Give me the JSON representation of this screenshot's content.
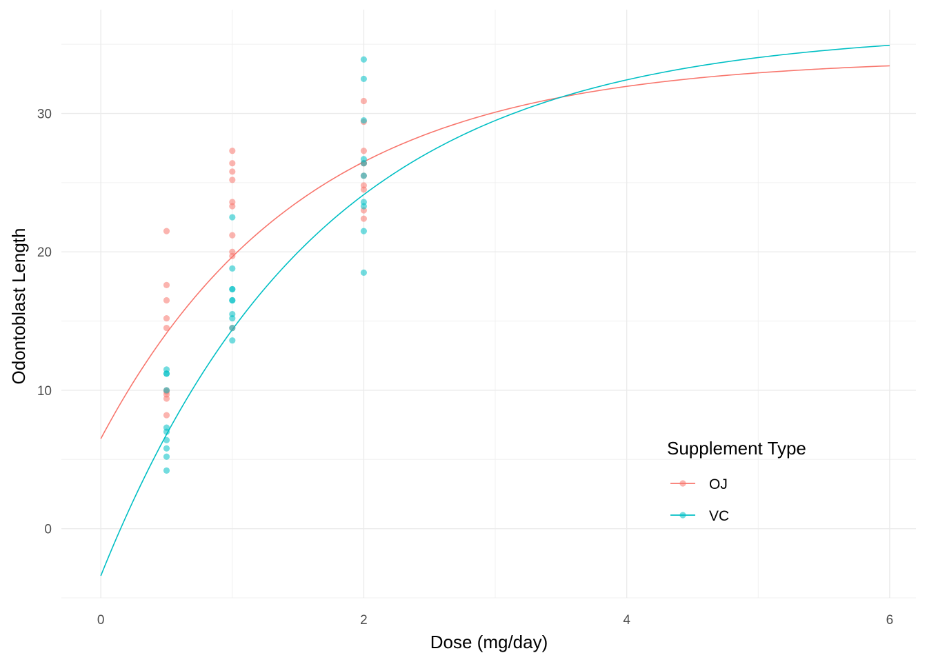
{
  "chart_data": {
    "type": "scatter",
    "title": "",
    "xlabel": "Dose (mg/day)",
    "ylabel": "Odontoblast Length",
    "xlim": [
      -0.3,
      6.2
    ],
    "ylim": [
      -5,
      37.5
    ],
    "x_ticks": [
      0,
      2,
      4,
      6
    ],
    "x_tick_labels": [
      "0",
      "2",
      "4",
      "6"
    ],
    "x_minor_ticks": [
      1,
      3,
      5
    ],
    "y_ticks": [
      0,
      10,
      20,
      30
    ],
    "y_tick_labels": [
      "0",
      "10",
      "20",
      "30"
    ],
    "y_minor_ticks": [
      -5,
      5,
      15,
      25,
      35
    ],
    "grid": true,
    "legend": {
      "title": "Supplement Type",
      "position": "bottom-right"
    },
    "series": [
      {
        "name": "OJ",
        "color": "#F8766D",
        "points": [
          [
            0.5,
            21.5
          ],
          [
            0.5,
            17.6
          ],
          [
            0.5,
            16.5
          ],
          [
            0.5,
            15.2
          ],
          [
            0.5,
            14.5
          ],
          [
            0.5,
            10.0
          ],
          [
            0.5,
            9.7
          ],
          [
            0.5,
            9.4
          ],
          [
            0.5,
            8.2
          ],
          [
            0.5,
            9.9
          ],
          [
            1,
            27.3
          ],
          [
            1,
            26.4
          ],
          [
            1,
            25.8
          ],
          [
            1,
            25.2
          ],
          [
            1,
            23.6
          ],
          [
            1,
            23.3
          ],
          [
            1,
            21.2
          ],
          [
            1,
            20.0
          ],
          [
            1,
            19.7
          ],
          [
            1,
            14.5
          ],
          [
            2,
            30.9
          ],
          [
            2,
            29.4
          ],
          [
            2,
            27.3
          ],
          [
            2,
            26.4
          ],
          [
            2,
            25.5
          ],
          [
            2,
            24.8
          ],
          [
            2,
            24.5
          ],
          [
            2,
            23.0
          ],
          [
            2,
            22.4
          ],
          [
            2,
            26.4
          ]
        ],
        "fit": {
          "model": "exponential",
          "asymptote": 34.0,
          "span": 27.5,
          "rate": 0.65
        }
      },
      {
        "name": "VC",
        "color": "#00BFC4",
        "points": [
          [
            0.5,
            11.5
          ],
          [
            0.5,
            11.2
          ],
          [
            0.5,
            10.0
          ],
          [
            0.5,
            7.3
          ],
          [
            0.5,
            7.0
          ],
          [
            0.5,
            6.4
          ],
          [
            0.5,
            5.8
          ],
          [
            0.5,
            5.2
          ],
          [
            0.5,
            4.2
          ],
          [
            0.5,
            11.2
          ],
          [
            1,
            22.5
          ],
          [
            1,
            18.8
          ],
          [
            1,
            17.3
          ],
          [
            1,
            16.5
          ],
          [
            1,
            15.5
          ],
          [
            1,
            15.2
          ],
          [
            1,
            14.5
          ],
          [
            1,
            13.6
          ],
          [
            1,
            17.3
          ],
          [
            1,
            16.5
          ],
          [
            2,
            33.9
          ],
          [
            2,
            32.5
          ],
          [
            2,
            29.5
          ],
          [
            2,
            26.7
          ],
          [
            2,
            26.4
          ],
          [
            2,
            25.5
          ],
          [
            2,
            23.6
          ],
          [
            2,
            23.3
          ],
          [
            2,
            21.5
          ],
          [
            2,
            18.5
          ]
        ],
        "fit": {
          "model": "exponential",
          "asymptote": 36.0,
          "span": 39.4,
          "rate": 0.6
        }
      }
    ]
  }
}
